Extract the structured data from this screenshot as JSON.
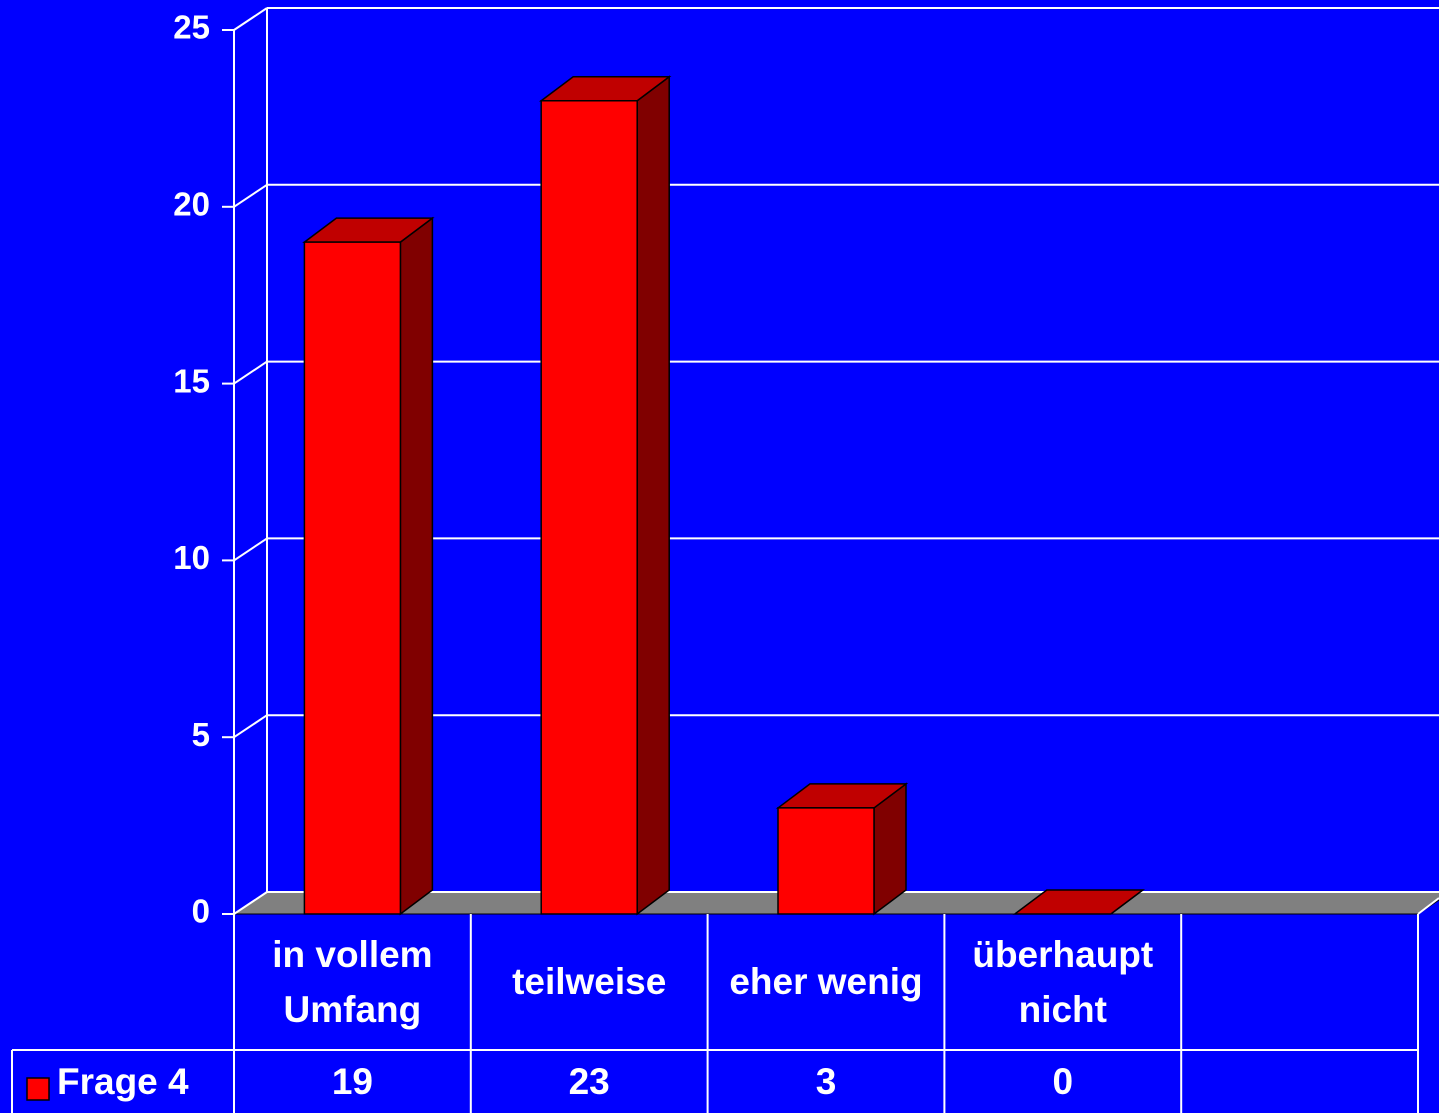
{
  "chart_data": {
    "type": "bar3d",
    "categories": [
      "in vollem Umfang",
      "teilweise",
      "eher wenig",
      "überhaupt nicht",
      null
    ],
    "series": [
      {
        "name": "Frage 4",
        "color": "#ff0000",
        "values": [
          19,
          23,
          3,
          0,
          null
        ]
      }
    ],
    "ylim": [
      0,
      25
    ],
    "yticks": [
      0,
      5,
      10,
      15,
      20,
      25
    ],
    "grid": true
  }
}
